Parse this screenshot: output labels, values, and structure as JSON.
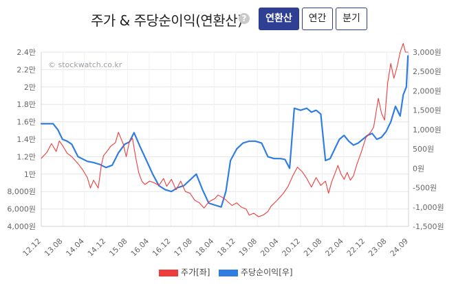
{
  "header": {
    "title": "주가 & 주당순이익(연환산)",
    "help_symbol": "?",
    "tabs": [
      {
        "label": "연환산",
        "active": true
      },
      {
        "label": "연간",
        "active": false
      },
      {
        "label": "분기",
        "active": false
      }
    ]
  },
  "watermark": "© stockwatch.co.kr",
  "legend": [
    {
      "label": "주가[좌]",
      "color": "#ee3b3b"
    },
    {
      "label": "주당순이익[우]",
      "color": "#2f7de1"
    }
  ],
  "colors": {
    "price": "#ee3b3b",
    "eps": "#2f7de1",
    "accent": "#2f3f93",
    "grid": "#e6e6e6"
  },
  "chart_data": {
    "type": "line",
    "x_tick_labels": [
      "12.12",
      "13.08",
      "14.04",
      "14.12",
      "15.08",
      "16.04",
      "16.12",
      "17.08",
      "18.04",
      "18.12",
      "19.08",
      "20.04",
      "20.12",
      "21.08",
      "22.04",
      "22.12",
      "23.08",
      "24.09"
    ],
    "y_left": {
      "ticks": [
        4000,
        6000,
        8000,
        10000,
        12000,
        14000,
        16000,
        18000,
        20000,
        22000,
        24000
      ],
      "labels": [
        "4,000원",
        "6,000원",
        "8,000원",
        "1만",
        "1.2만",
        "1.4만",
        "1.6만",
        "1.8만",
        "2만",
        "2.2만",
        "2.4만"
      ],
      "ylim": [
        4000,
        24000
      ]
    },
    "y_right": {
      "ticks": [
        -1500,
        -1000,
        -500,
        0,
        500,
        1000,
        1500,
        2000,
        2500,
        3000
      ],
      "labels": [
        "-1,500원",
        "-1,000원",
        "-500원",
        "0원",
        "500원",
        "1,000원",
        "1,500원",
        "2,000원",
        "2,500원",
        "3,000원"
      ],
      "ylim": [
        -1500,
        3000
      ]
    },
    "grid": true,
    "legend_position": "bottom",
    "series": [
      {
        "name": "주가[좌]",
        "axis": "left",
        "x": [
          2012.92,
          2013.1,
          2013.25,
          2013.4,
          2013.5,
          2013.6,
          2013.75,
          2013.9,
          2014.0,
          2014.1,
          2014.25,
          2014.4,
          2014.5,
          2014.6,
          2014.75,
          2014.85,
          2014.92,
          2015.05,
          2015.15,
          2015.3,
          2015.4,
          2015.55,
          2015.65,
          2015.75,
          2015.85,
          2015.95,
          2016.05,
          2016.15,
          2016.25,
          2016.4,
          2016.55,
          2016.7,
          2016.85,
          2016.95,
          2017.1,
          2017.25,
          2017.4,
          2017.55,
          2017.7,
          2017.85,
          2018.0,
          2018.15,
          2018.3,
          2018.4,
          2018.5,
          2018.6,
          2018.7,
          2018.8,
          2018.92,
          2019.05,
          2019.2,
          2019.35,
          2019.5,
          2019.6,
          2019.75,
          2019.9,
          2020.05,
          2020.2,
          2020.3,
          2020.5,
          2020.7,
          2020.85,
          2021.0,
          2021.15,
          2021.3,
          2021.45,
          2021.6,
          2021.75,
          2021.9,
          2022.05,
          2022.15,
          2022.25,
          2022.35,
          2022.45,
          2022.55,
          2022.65,
          2022.75,
          2022.85,
          2022.95,
          2023.05,
          2023.2,
          2023.35,
          2023.5,
          2023.6,
          2023.75,
          2023.85,
          2023.95,
          2024.05,
          2024.15,
          2024.25,
          2024.35,
          2024.45,
          2024.55,
          2024.62,
          2024.7
        ],
        "values": [
          11800,
          12500,
          13500,
          12600,
          13800,
          13300,
          12400,
          12000,
          11600,
          11200,
          10500,
          9600,
          8400,
          9300,
          8400,
          11000,
          12100,
          12700,
          13200,
          13600,
          14800,
          13500,
          12000,
          13700,
          14100,
          12000,
          10200,
          9200,
          8800,
          9200,
          9000,
          8700,
          9500,
          8600,
          9400,
          8200,
          9200,
          8000,
          7800,
          7000,
          6700,
          6100,
          6800,
          7000,
          7200,
          7600,
          7400,
          7200,
          6800,
          6400,
          6700,
          6200,
          6000,
          5300,
          5500,
          5100,
          5300,
          5700,
          6300,
          7000,
          7800,
          8600,
          9800,
          10800,
          10300,
          9500,
          8500,
          9600,
          8700,
          9200,
          7800,
          9100,
          10000,
          11000,
          10000,
          9400,
          10200,
          9300,
          9800,
          11000,
          12500,
          14200,
          14800,
          15400,
          18700,
          17000,
          16200,
          20500,
          22700,
          21000,
          22300,
          24000,
          25000,
          24000,
          24000
        ]
      },
      {
        "name": "주당순이익[우]",
        "axis": "right",
        "x": [
          2012.92,
          2013.15,
          2013.3,
          2013.45,
          2013.6,
          2013.75,
          2013.9,
          2014.1,
          2014.4,
          2014.6,
          2014.8,
          2015.0,
          2015.2,
          2015.4,
          2015.6,
          2015.75,
          2015.9,
          2016.1,
          2016.3,
          2016.5,
          2016.7,
          2016.9,
          2017.1,
          2017.3,
          2017.5,
          2017.7,
          2017.9,
          2018.1,
          2018.3,
          2018.5,
          2018.7,
          2018.85,
          2019.0,
          2019.2,
          2019.4,
          2019.6,
          2019.8,
          2020.0,
          2020.2,
          2020.4,
          2020.6,
          2020.75,
          2020.9,
          2021.05,
          2021.25,
          2021.45,
          2021.6,
          2021.75,
          2021.9,
          2022.05,
          2022.2,
          2022.35,
          2022.5,
          2022.65,
          2022.8,
          2022.95,
          2023.1,
          2023.25,
          2023.4,
          2023.55,
          2023.7,
          2023.85,
          2024.0,
          2024.15,
          2024.3,
          2024.45,
          2024.55,
          2024.65,
          2024.7
        ],
        "values": [
          1150,
          1150,
          1150,
          1000,
          750,
          700,
          620,
          300,
          180,
          150,
          100,
          20,
          80,
          400,
          620,
          680,
          920,
          550,
          200,
          -150,
          -450,
          -550,
          -600,
          -500,
          -450,
          -300,
          -150,
          -550,
          -900,
          -950,
          -1000,
          -600,
          200,
          500,
          650,
          700,
          700,
          650,
          300,
          250,
          250,
          230,
          0,
          1550,
          1500,
          1550,
          1450,
          1500,
          1400,
          200,
          250,
          500,
          750,
          850,
          700,
          600,
          650,
          750,
          850,
          900,
          750,
          800,
          950,
          1200,
          1600,
          1350,
          1900,
          2100,
          2900
        ]
      }
    ]
  }
}
